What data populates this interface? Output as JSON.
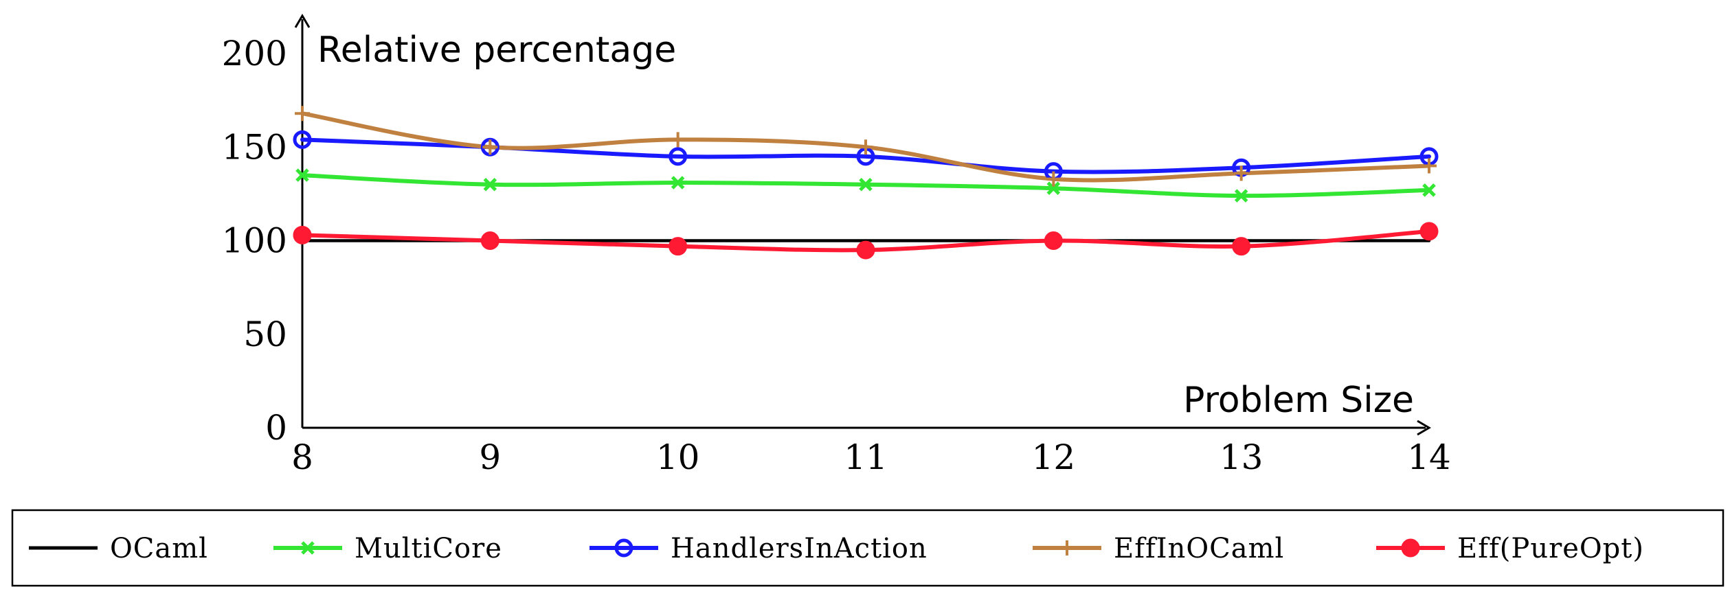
{
  "chart_data": {
    "type": "line",
    "x": [
      8,
      9,
      10,
      11,
      12,
      13,
      14
    ],
    "xlabel": "Problem Size",
    "ylabel": "Relative percentage",
    "xlim": [
      8,
      14
    ],
    "ylim": [
      0,
      200
    ],
    "x_ticks": [
      "8",
      "9",
      "10",
      "11",
      "12",
      "13",
      "14"
    ],
    "y_ticks": [
      "0",
      "50",
      "100",
      "150",
      "200"
    ],
    "grid": false,
    "legend_position": "bottom",
    "series": [
      {
        "name": "OCaml",
        "color": "#000000",
        "marker": "none",
        "values": [
          100,
          100,
          100,
          100,
          100,
          100,
          100
        ]
      },
      {
        "name": "MultiCore",
        "color": "#33e633",
        "marker": "x",
        "values": [
          135,
          130,
          131,
          130,
          128,
          124,
          127
        ]
      },
      {
        "name": "HandlersInAction",
        "color": "#1a1aff",
        "marker": "open-circle",
        "values": [
          154,
          150,
          145,
          145,
          137,
          139,
          145
        ]
      },
      {
        "name": "EffInOCaml",
        "color": "#bf8040",
        "marker": "plus",
        "values": [
          168,
          150,
          154,
          150,
          133,
          136,
          140
        ]
      },
      {
        "name": "Eff(PureOpt)",
        "color": "#ff1a33",
        "marker": "filled-circle",
        "values": [
          103,
          100,
          97,
          95,
          100,
          97,
          105
        ]
      }
    ]
  }
}
